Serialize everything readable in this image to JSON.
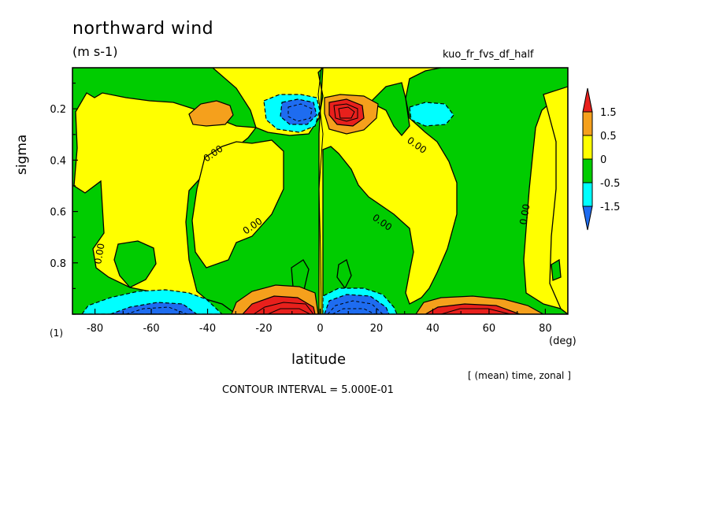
{
  "chart_data": {
    "type": "heatmap",
    "title": "northward wind",
    "units": "(m s-1)",
    "run_name": "kuo_fr_fvs_df_half",
    "xlabel": "latitude",
    "x_unit": "(deg)",
    "ylabel": "sigma",
    "y_level_note": "(1)",
    "xlim": [
      -88,
      88
    ],
    "ylim": [
      1.0,
      0.04
    ],
    "x_ticks": [
      -80,
      -60,
      -40,
      -20,
      0,
      20,
      40,
      60,
      80
    ],
    "x_tick_labels": [
      "-80",
      "-60",
      "-40",
      "-20",
      "0",
      "20",
      "40",
      "60",
      "80"
    ],
    "y_ticks": [
      0.2,
      0.4,
      0.6,
      0.8
    ],
    "y_tick_labels": [
      "0.2",
      "0.4",
      "0.6",
      "0.8"
    ],
    "contour_labels": [
      "0.00",
      "0.00",
      "0.00",
      "0.00",
      "0.00",
      "0.00"
    ],
    "colorbar": {
      "levels": [
        "1.5",
        "0.5",
        "0",
        "-0.5",
        "-1.5"
      ],
      "colors": [
        "#e8201c",
        "#f5a01c",
        "#ffff00",
        "#00cc00",
        "#00ffff",
        "#1e6cf0"
      ]
    },
    "footnote": "[ (mean) time, zonal ]",
    "contour_interval_text": "CONTOUR INTERVAL = 5.000E-01"
  }
}
